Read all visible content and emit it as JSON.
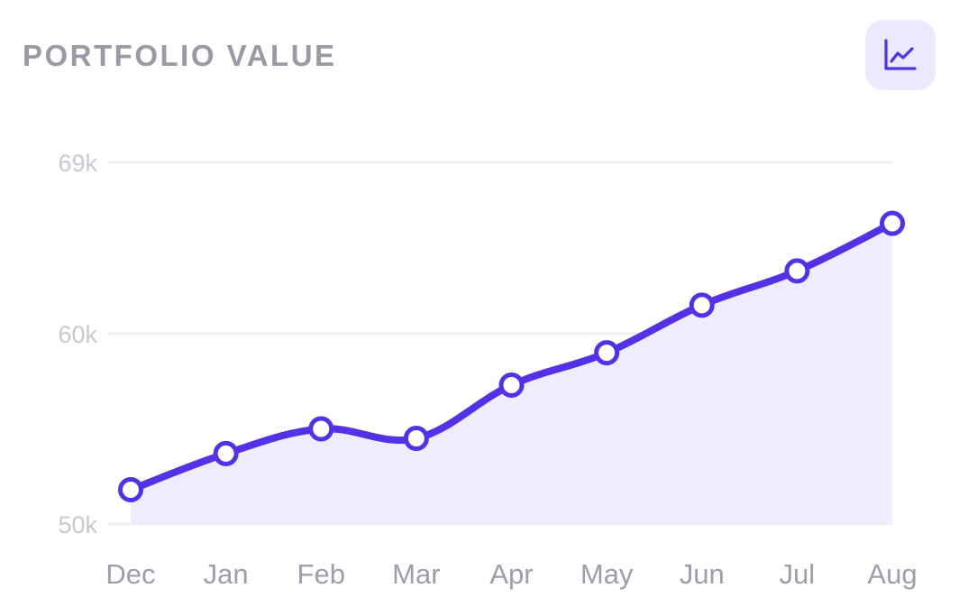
{
  "header": {
    "title": "PORTFOLIO VALUE",
    "chart_button_icon": "line-chart-icon"
  },
  "colors": {
    "accent": "#5332e6",
    "area_fill": "#efecfd",
    "grid": "#f1f1f4",
    "tick_y": "#c9c9d1",
    "tick_x": "#9e9eaa",
    "title": "#9a9aa6",
    "button_bg": "#ece8fd"
  },
  "chart_data": {
    "type": "area",
    "title": "PORTFOLIO VALUE",
    "xlabel": "",
    "ylabel": "",
    "categories": [
      "Dec",
      "Jan",
      "Feb",
      "Mar",
      "Apr",
      "May",
      "Jun",
      "Jul",
      "Aug"
    ],
    "series": [
      {
        "values": [
          51800,
          53700,
          55000,
          54500,
          57300,
          59000,
          61500,
          63300,
          65800
        ]
      }
    ],
    "y_ticks": [
      {
        "value": 50000,
        "label": "50k"
      },
      {
        "value": 60000,
        "label": "60k"
      },
      {
        "value": 69000,
        "label": "69k"
      }
    ],
    "ylim": [
      50000,
      69000
    ],
    "grid": true,
    "legend": "none",
    "markers": "hollow-circle",
    "smooth": true
  }
}
